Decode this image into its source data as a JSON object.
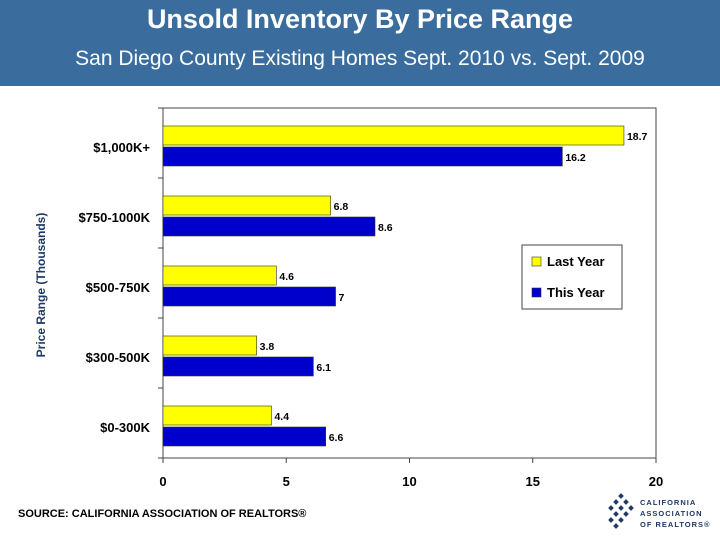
{
  "header": {
    "title": "Unsold Inventory By Price Range",
    "subtitle": "San Diego County Existing Homes Sept. 2010 vs. Sept. 2009"
  },
  "colors": {
    "header_bg": "#3a6d9e",
    "last_year": "#ffff00",
    "this_year": "#0000cc"
  },
  "chart_data": {
    "type": "bar",
    "orientation": "horizontal",
    "ylabel": "Price Range (Thousands)",
    "xlabel": "",
    "categories": [
      "$1,000K+",
      "$750-1000K",
      "$500-750K",
      "$300-500K",
      "$0-300K"
    ],
    "series": [
      {
        "name": "Last Year",
        "values": [
          18.7,
          6.8,
          4.6,
          3.8,
          4.4
        ]
      },
      {
        "name": "This Year",
        "values": [
          16.2,
          8.6,
          7,
          6.1,
          6.6
        ]
      }
    ],
    "data_labels": [
      [
        "18.7",
        "6.8",
        "4.6",
        "3.8",
        "4.4"
      ],
      [
        "16.2",
        "8.6",
        "7",
        "6.1",
        "6.6"
      ]
    ],
    "xlim": [
      0,
      20
    ],
    "x_ticks": [
      "0",
      "5",
      "10",
      "15",
      "20"
    ],
    "legend": {
      "position": "right",
      "entries": [
        "Last Year",
        "This Year"
      ]
    },
    "grid": false
  },
  "footer": {
    "source": "SOURCE: CALIFORNIA ASSOCIATION OF REALTORS®",
    "logo_lines": [
      "CALIFORNIA",
      "ASSOCIATION",
      "OF REALTORS®"
    ]
  }
}
